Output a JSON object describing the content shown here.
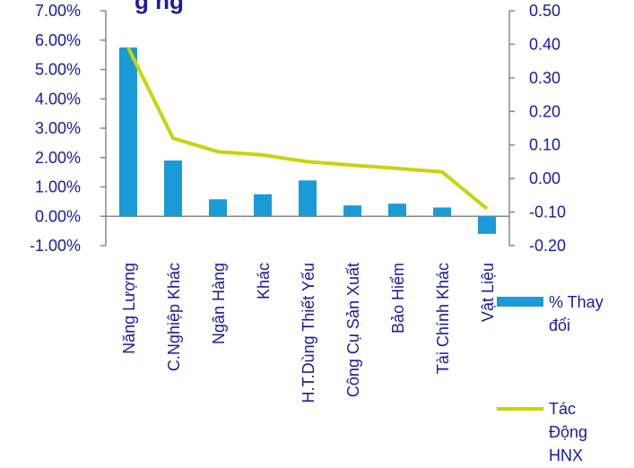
{
  "chart_data": {
    "type": "bar",
    "title_visible": "g       ng",
    "categories": [
      "Năng Lượng",
      "C.Nghiệp Khác",
      "Ngân Hàng",
      "Khác",
      "H.T.Dùng Thiết Yếu",
      "Công Cụ Sản Xuất",
      "Bảo Hiểm",
      "Tài Chính Khác",
      "Vật Liệu"
    ],
    "series": [
      {
        "name": "% Thay đổi",
        "type": "bar",
        "axis": "left",
        "color": "#1a9ad6",
        "values": [
          5.75,
          1.9,
          0.58,
          0.75,
          1.22,
          0.37,
          0.43,
          0.3,
          -0.6
        ]
      },
      {
        "name": "Tác Động HNX",
        "type": "line",
        "axis": "right",
        "color": "#c8d40a",
        "values": [
          0.39,
          0.12,
          0.08,
          0.07,
          0.05,
          0.04,
          0.03,
          0.02,
          -0.09
        ]
      }
    ],
    "left_axis": {
      "ylim": [
        -1,
        7
      ],
      "ticks": [
        "7.00%",
        "6.00%",
        "5.00%",
        "4.00%",
        "3.00%",
        "2.00%",
        "1.00%",
        "0.00%",
        "-1.00%"
      ]
    },
    "right_axis": {
      "ylim": [
        -0.2,
        0.5
      ],
      "ticks": [
        "0.50",
        "0.40",
        "0.30",
        "0.20",
        "0.10",
        "0.00",
        "-0.10",
        "-0.20"
      ]
    },
    "legend": {
      "placement": "right",
      "items": [
        "% Thay đổi",
        "Tác Động HNX"
      ]
    },
    "grid": false
  }
}
